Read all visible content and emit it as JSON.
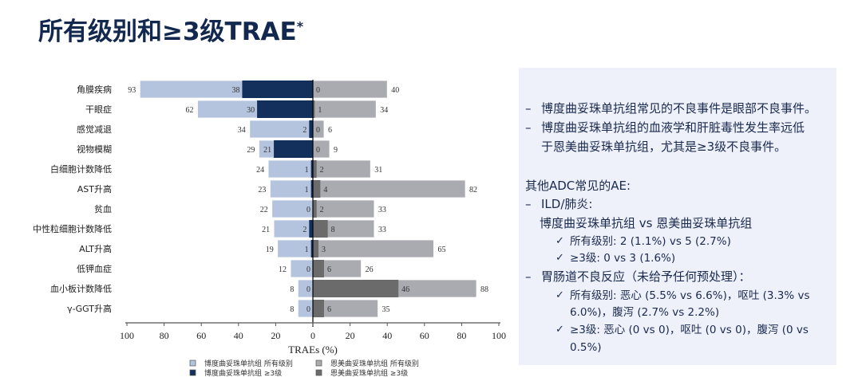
{
  "title": "所有级别和≥3级TRAE",
  "title_sup": "*",
  "chart_data": {
    "type": "bar",
    "orientation": "horizontal-diverging",
    "categories": [
      "角膜疾病",
      "干眼症",
      "感觉减退",
      "视物模糊",
      "白细胞计数降低",
      "AST升高",
      "贫血",
      "中性粒细胞计数降低",
      "ALT升高",
      "低钾血症",
      "血小板计数降低",
      "γ-GGT升高"
    ],
    "series": [
      {
        "name": "博度曲妥珠单抗组 所有级别",
        "side": "left",
        "color": "#b4c3de",
        "values": [
          93,
          62,
          34,
          29,
          24,
          23,
          22,
          21,
          19,
          12,
          8,
          8
        ]
      },
      {
        "name": "博度曲妥珠单抗组 ≥3级",
        "side": "left",
        "color": "#13305c",
        "values": [
          38,
          30,
          2,
          21,
          1,
          1,
          0,
          2,
          1,
          0,
          0,
          0
        ]
      },
      {
        "name": "恩美曲妥珠单抗组 所有级别",
        "side": "right",
        "color": "#a9abb0",
        "values": [
          40,
          34,
          6,
          9,
          31,
          82,
          33,
          33,
          65,
          26,
          88,
          35
        ]
      },
      {
        "name": "恩美曲妥珠单抗组 ≥3级",
        "side": "right",
        "color": "#6b6b6b",
        "values": [
          0,
          1,
          0,
          0,
          2,
          4,
          2,
          8,
          3,
          6,
          46,
          6
        ]
      }
    ],
    "xlabel": "TRAEs (%)",
    "xlim": [
      -100,
      100
    ],
    "xticks": [
      "100",
      "80",
      "60",
      "40",
      "20",
      "0",
      "20",
      "40",
      "60",
      "80",
      "100"
    ],
    "legend": "bottom"
  },
  "panel": {
    "bullets": [
      "博度曲妥珠单抗组常见的不良事件是眼部不良事件。",
      "博度曲妥珠单抗组的血液学和肝脏毒性发生率远低",
      "于恩美曲妥珠单抗组，尤其是≥3级不良事件。"
    ],
    "heading": "其他ADC常见的AE:",
    "ild": "ILD/肺炎:",
    "ild_sub": "博度曲妥珠单抗组 vs 恩美曲妥珠单抗组",
    "ild_all": "所有级别: 2 (1.1%) vs 5 (2.7%)",
    "ild_g3": "≥3级: 0 vs 3 (1.6%)",
    "gi": "胃肠道不良反应（未给予任何预处理）：",
    "gi_all_1": "所有级别: 恶心 (5.5% vs 6.6%)，呕吐 (3.3% vs",
    "gi_all_2": "6.0%)，腹泻 (2.7% vs 2.2%)",
    "gi_g3": "≥3级: 恶心 (0 vs 0)，呕吐 (0 vs 0)，腹泻 (0 vs 0.5%)",
    "dash": "–",
    "check": "✓"
  }
}
